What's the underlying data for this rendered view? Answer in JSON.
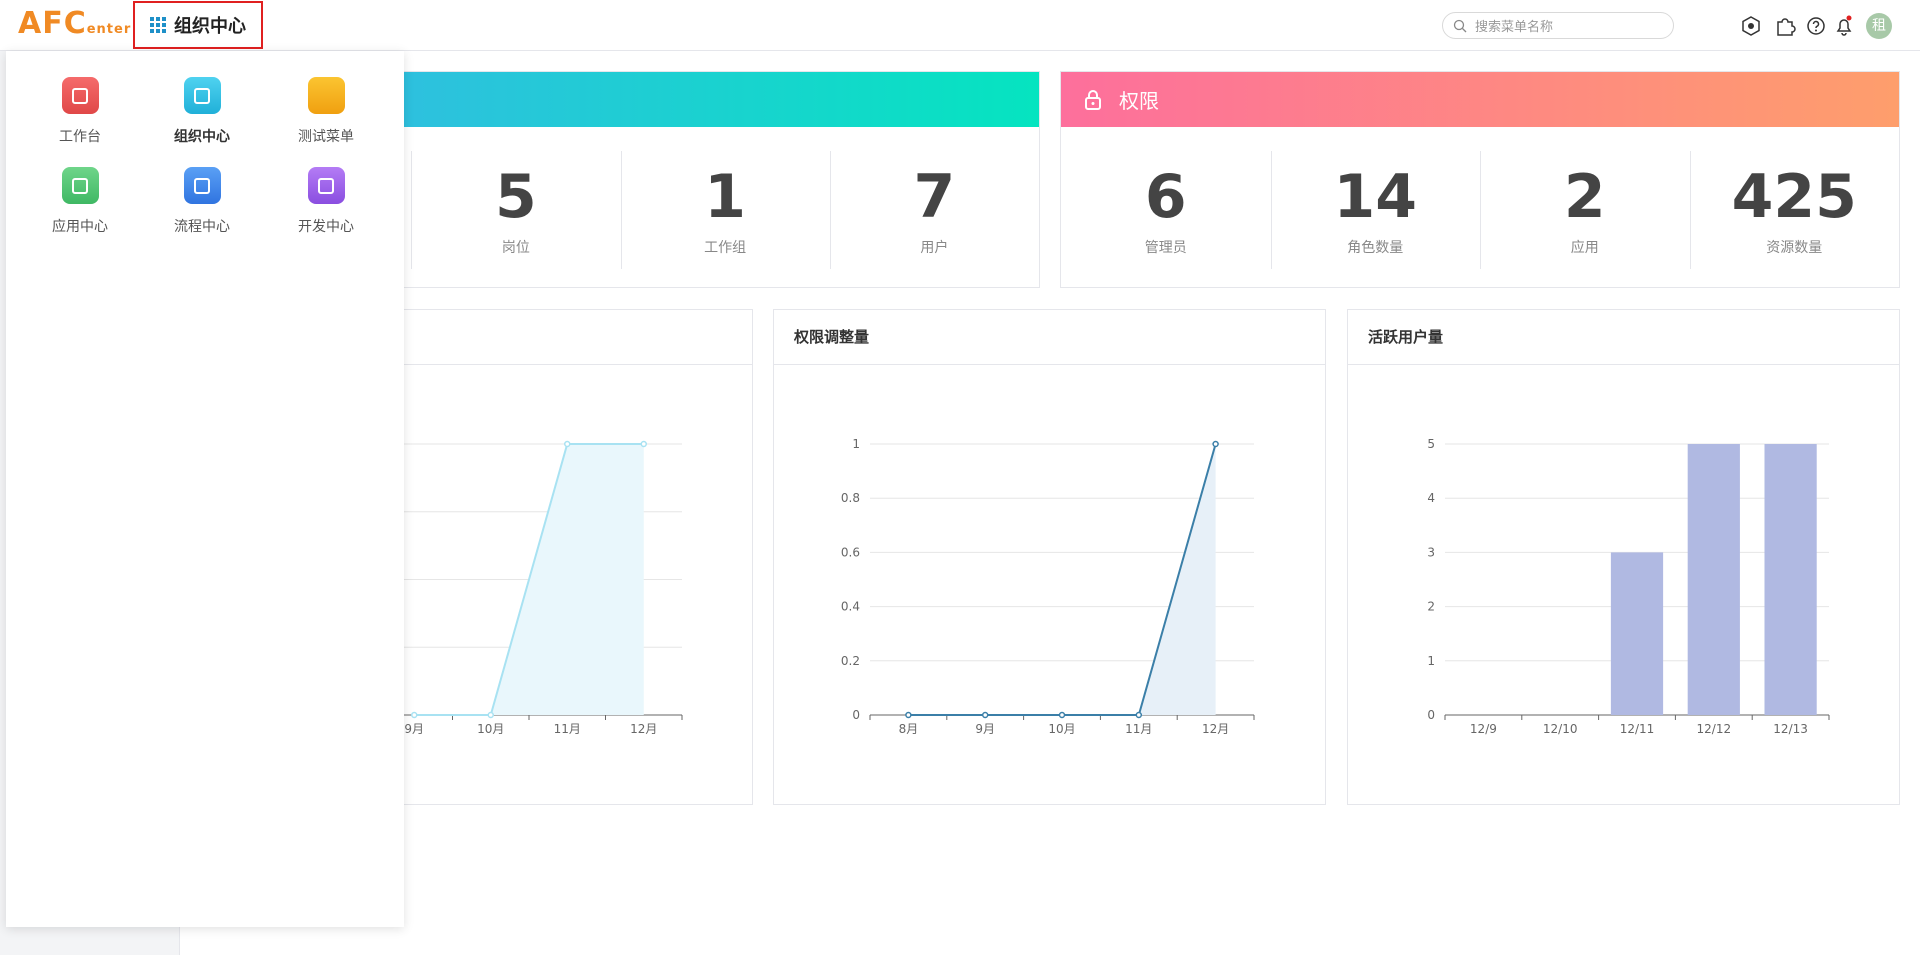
{
  "header": {
    "logo_main": "AFC",
    "logo_sub": "enter",
    "menu_button": "组织中心",
    "search_placeholder": "搜索菜单名称",
    "avatar": "租"
  },
  "menu_panel": {
    "items": [
      "工作台",
      "组织中心",
      "测试菜单",
      "应用中心",
      "流程中心",
      "开发中心"
    ]
  },
  "org_card": {
    "stats": [
      {
        "value": 5,
        "label": "岗位"
      },
      {
        "value": 1,
        "label": "工作组"
      },
      {
        "value": 7,
        "label": "用户"
      }
    ]
  },
  "perm_card": {
    "title": "权限",
    "stats": [
      {
        "value": 6,
        "label": "管理员"
      },
      {
        "value": 14,
        "label": "角色数量"
      },
      {
        "value": 2,
        "label": "应用"
      },
      {
        "value": 425,
        "label": "资源数量"
      }
    ]
  },
  "charts": [
    {
      "type": "line",
      "area": true,
      "categories": [
        "9月",
        "10月",
        "11月",
        "12月"
      ],
      "values": [
        0,
        0,
        4,
        4
      ],
      "ylim": [
        0,
        4
      ],
      "yticks": [
        0,
        1,
        2,
        3,
        4
      ],
      "ytick_labels": false,
      "color": "#a8e2f2",
      "fill_color": "#e9f7fc"
    },
    {
      "type": "line",
      "title": "权限调整量",
      "area": true,
      "categories": [
        "8月",
        "9月",
        "10月",
        "11月",
        "12月"
      ],
      "values": [
        0,
        0,
        0,
        0,
        1
      ],
      "ylim": [
        0,
        1
      ],
      "yticks": [
        0,
        0.2,
        0.4,
        0.6,
        0.8,
        1
      ],
      "ytick_labels": true,
      "color": "#3b7fa8",
      "fill_color": "#e7f0f8"
    },
    {
      "type": "bar",
      "title": "活跃用户量",
      "categories": [
        "12/9",
        "12/10",
        "12/11",
        "12/12",
        "12/13"
      ],
      "values": [
        0,
        0,
        3,
        5,
        5
      ],
      "ylim": [
        0,
        5
      ],
      "yticks": [
        0,
        1,
        2,
        3,
        4,
        5
      ],
      "ytick_labels": true,
      "color": "#b0b9e2"
    }
  ]
}
